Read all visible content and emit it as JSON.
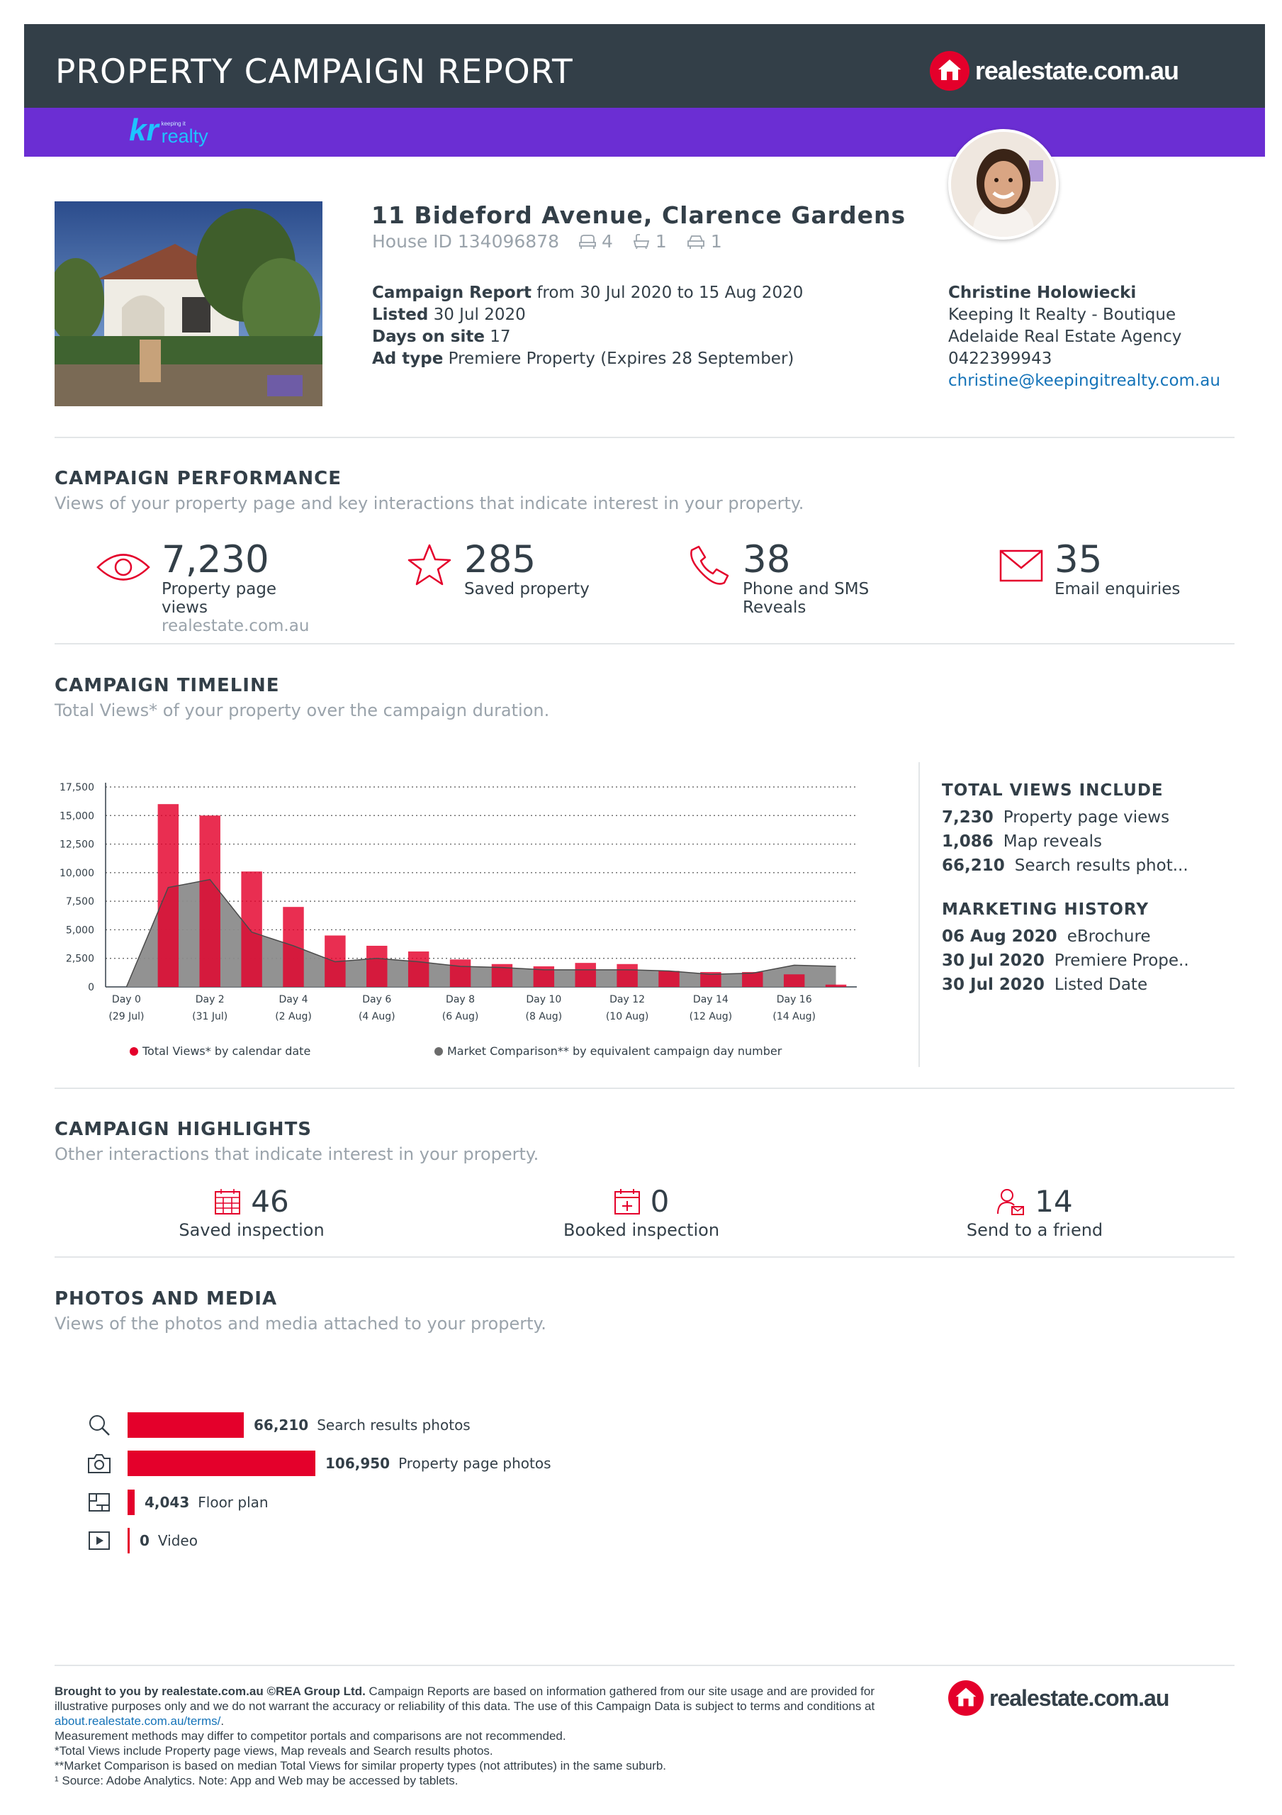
{
  "header": {
    "title": "PROPERTY CAMPAIGN REPORT",
    "brand_logo_text": "realestate.com.au",
    "agency_logo_small": "keeping it",
    "agency_logo_word": "realty",
    "agency_logo_mark": "kr"
  },
  "property": {
    "address": "11 Bideford Avenue, Clarence Gardens",
    "house_id": "House ID 134096878",
    "bedrooms": "4",
    "bathrooms": "1",
    "parking": "1",
    "campaign_report_label": "Campaign Report",
    "campaign_report_value": "from 30 Jul 2020 to 15 Aug 2020",
    "listed_label": "Listed",
    "listed_value": "30 Jul 2020",
    "days_label": "Days on site",
    "days_value": "17",
    "adtype_label": "Ad type",
    "adtype_value": "Premiere Property (Expires 28 September)"
  },
  "agent": {
    "name": "Christine Holowiecki",
    "agency_line1": "Keeping It Realty - Boutique",
    "agency_line2": "Adelaide Real Estate Agency",
    "phone": "0422399943",
    "email": "christine@keepingitrealty.com.au"
  },
  "performance": {
    "title": "CAMPAIGN PERFORMANCE",
    "subtitle": "Views of your property page and key interactions that indicate interest in your property.",
    "views_value": "7,230",
    "views_label_1": "Property page",
    "views_label_2": "views",
    "views_source": "realestate.com.au",
    "saved_value": "285",
    "saved_label": "Saved property",
    "phone_value": "38",
    "phone_label_1": "Phone and SMS",
    "phone_label_2": "Reveals",
    "email_value": "35",
    "email_label": "Email enquiries"
  },
  "timeline": {
    "title": "CAMPAIGN TIMELINE",
    "subtitle": "Total Views* of your property over the campaign duration."
  },
  "chart_data": {
    "type": "bar",
    "categories": [
      "Day 0",
      "Day 1",
      "Day 2",
      "Day 3",
      "Day 4",
      "Day 5",
      "Day 6",
      "Day 7",
      "Day 8",
      "Day 9",
      "Day 10",
      "Day 11",
      "Day 12",
      "Day 13",
      "Day 14",
      "Day 15",
      "Day 16",
      "Day 17"
    ],
    "x_tick_labels": [
      "Day 0",
      "Day 2",
      "Day 4",
      "Day 6",
      "Day 8",
      "Day 10",
      "Day 12",
      "Day 14",
      "Day 16"
    ],
    "x_tick_dates": [
      "(29 Jul)",
      "(31 Jul)",
      "(2 Aug)",
      "(4 Aug)",
      "(6 Aug)",
      "(8 Aug)",
      "(10 Aug)",
      "(12 Aug)",
      "(14 Aug)"
    ],
    "x_tick_days": [
      0,
      2,
      4,
      6,
      8,
      10,
      12,
      14,
      16
    ],
    "y_ticks": [
      "0",
      "2,500",
      "5,000",
      "7,500",
      "10,000",
      "12,500",
      "15,000",
      "17,500"
    ],
    "ylim": [
      0,
      17500
    ],
    "grid": true,
    "series": [
      {
        "name": "Total Views* by calendar date",
        "type": "bar",
        "color": "#e4002b",
        "x": [
          1,
          2,
          3,
          4,
          5,
          6,
          7,
          8,
          9,
          10,
          11,
          12,
          13,
          14,
          15,
          16,
          17
        ],
        "values": [
          16000,
          15000,
          10100,
          7000,
          4500,
          3600,
          3100,
          2400,
          2000,
          1800,
          2100,
          2000,
          1400,
          1300,
          1300,
          1100,
          200
        ]
      },
      {
        "name": "Market Comparison** by equivalent campaign day number",
        "type": "area",
        "color": "#6b6b6b",
        "x": [
          0,
          1,
          2,
          3,
          4,
          5,
          6,
          7,
          8,
          9,
          10,
          11,
          12,
          13,
          14,
          15,
          16,
          17
        ],
        "values": [
          0,
          8700,
          9400,
          4800,
          3600,
          2200,
          2500,
          2200,
          1800,
          1700,
          1500,
          1500,
          1500,
          1400,
          1100,
          1200,
          1900,
          1800
        ]
      }
    ]
  },
  "side": {
    "total_title": "TOTAL VIEWS INCLUDE",
    "total_rows": [
      {
        "value": "7,230",
        "label": "Property page views"
      },
      {
        "value": "1,086",
        "label": "Map reveals"
      },
      {
        "value": "66,210",
        "label": "Search results phot..."
      }
    ],
    "marketing_title": "MARKETING HISTORY",
    "marketing_rows": [
      {
        "date": "06 Aug 2020",
        "label": "eBrochure"
      },
      {
        "date": "30 Jul 2020",
        "label": "Premiere Prope.."
      },
      {
        "date": "30 Jul 2020",
        "label": "Listed Date"
      }
    ]
  },
  "highlights": {
    "title": "CAMPAIGN HIGHLIGHTS",
    "subtitle": "Other interactions that indicate interest in your property.",
    "items": [
      {
        "value": "46",
        "label": "Saved inspection",
        "icon": "calendar-icon"
      },
      {
        "value": "0",
        "label": "Booked inspection",
        "icon": "calendar-plus-icon"
      },
      {
        "value": "14",
        "label": "Send to a friend",
        "icon": "person-mail-icon"
      }
    ]
  },
  "media": {
    "title": "PHOTOS AND MEDIA",
    "subtitle": "Views of the photos and media attached to your property.",
    "max": 106950,
    "items": [
      {
        "value": "66,210",
        "number": 66210,
        "label": "Search results photos",
        "icon": "search-icon"
      },
      {
        "value": "106,950",
        "number": 106950,
        "label": "Property page photos",
        "icon": "camera-icon"
      },
      {
        "value": "4,043",
        "number": 4043,
        "label": "Floor plan",
        "icon": "floorplan-icon"
      },
      {
        "value": "0",
        "number": 0,
        "label": "Video",
        "icon": "video-icon"
      }
    ]
  },
  "footer": {
    "lead": "Brought to you by realestate.com.au ©REA Group Ltd.",
    "line1_rest": " Campaign Reports are based on information gathered from our site usage and are provided for illustrative purposes only and we do not warrant the accuracy or reliability of this data.  The use of this Campaign Data is subject to terms and conditions at ",
    "link": "about.realestate.com.au/terms/",
    "link_end": ".",
    "line2": "Measurement methods may differ to competitor portals and comparisons are not recommended.",
    "line3": "*Total Views include Property page views, Map reveals and Search results photos.",
    "line4": "**Market Comparison is based on median Total Views for similar property types (not attributes) in the same suburb.",
    "line5": "¹ Source: Adobe Analytics. Note: App and Web may be accessed by tablets.",
    "logo_text": "realestate.com.au"
  }
}
